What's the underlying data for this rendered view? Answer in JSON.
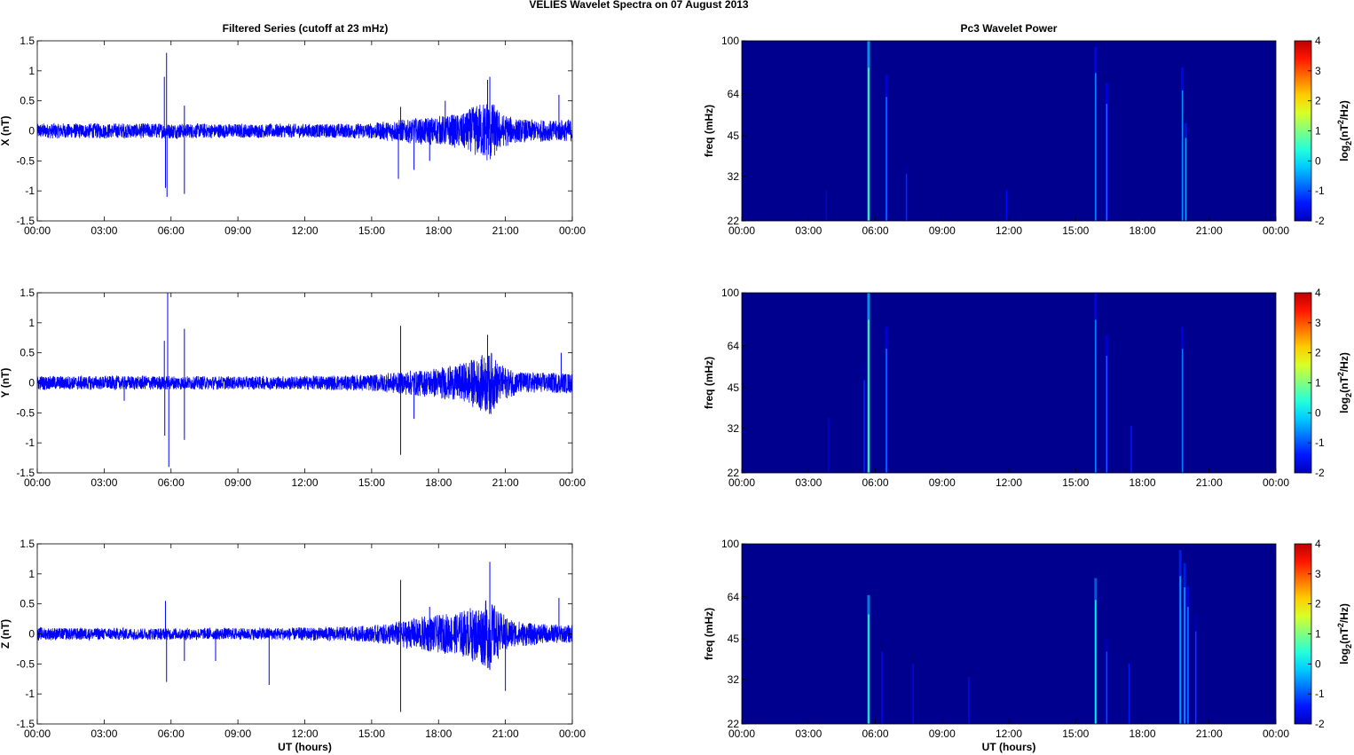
{
  "figure": {
    "title": "VELIES Wavelet Spectra on 07 August    2013",
    "left_column_title": "Filtered Series (cutoff at 23 mHz)",
    "right_column_title": "Pc3 Wavelet Power",
    "series_color": "#0000FF",
    "spectrogram_background": "#00008F",
    "colormap": "jet"
  },
  "chart_data": [
    {
      "type": "line",
      "panel": "X",
      "title": "Filtered Series (cutoff at 23 mHz)",
      "xlabel": "",
      "ylabel": "X (nT)",
      "xlim": [
        "00:00",
        "24:00"
      ],
      "ylim": [
        -1.5,
        1.5
      ],
      "x_ticks": [
        "00:00",
        "03:00",
        "06:00",
        "09:00",
        "12:00",
        "15:00",
        "18:00",
        "21:00",
        "00:00"
      ],
      "y_ticks": [
        "1.5",
        "1",
        "0.5",
        "0",
        "-0.5",
        "-1",
        "-1.5"
      ],
      "series": [
        {
          "baseline_envelope": [
            [
              0,
              0.13
            ],
            [
              5,
              0.13
            ],
            [
              6,
              0.13
            ],
            [
              9,
              0.12
            ],
            [
              12,
              0.12
            ],
            [
              15,
              0.13
            ],
            [
              16,
              0.18
            ],
            [
              17,
              0.22
            ],
            [
              18,
              0.25
            ],
            [
              19,
              0.3
            ],
            [
              19.8,
              0.45
            ],
            [
              20.3,
              0.55
            ],
            [
              20.8,
              0.3
            ],
            [
              21.5,
              0.2
            ],
            [
              23,
              0.18
            ],
            [
              24,
              0.2
            ]
          ],
          "spikes": [
            [
              5.7,
              0.9
            ],
            [
              5.75,
              -0.95
            ],
            [
              5.8,
              1.3
            ],
            [
              5.82,
              -1.1
            ],
            [
              6.6,
              -1.05
            ],
            [
              6.6,
              0.42
            ],
            [
              16.2,
              -0.8
            ],
            [
              16.3,
              0.4
            ],
            [
              16.9,
              -0.65
            ],
            [
              17.6,
              -0.5
            ],
            [
              18.3,
              0.5
            ],
            [
              20.2,
              0.85
            ],
            [
              20.3,
              0.9
            ],
            [
              23.4,
              0.6
            ]
          ]
        }
      ]
    },
    {
      "type": "heatmap",
      "panel": "X",
      "title": "Pc3 Wavelet Power",
      "xlabel": "",
      "ylabel": "freq (mHz)",
      "colorbar_label": "log2(nT^2/Hz)",
      "x_ticks": [
        "00:00",
        "03:00",
        "06:00",
        "09:00",
        "12:00",
        "15:00",
        "18:00",
        "21:00",
        "00:00"
      ],
      "y_ticks": [
        "100",
        "64",
        "45",
        "32",
        "22"
      ],
      "colorbar_ticks": [
        "4",
        "3",
        "2",
        "1",
        "0",
        "-1",
        "-2"
      ],
      "crange": [
        -2,
        4
      ],
      "bursts": [
        [
          5.7,
          100,
          0.8
        ],
        [
          6.5,
          75,
          -0.5
        ],
        [
          7.4,
          35,
          -1.0
        ],
        [
          3.8,
          30,
          -1.4
        ],
        [
          11.9,
          30,
          -1.2
        ],
        [
          15.9,
          95,
          -0.4
        ],
        [
          16.4,
          70,
          -0.5
        ],
        [
          19.8,
          80,
          -0.4
        ],
        [
          19.95,
          50,
          -0.3
        ]
      ]
    },
    {
      "type": "line",
      "panel": "Y",
      "title": "",
      "xlabel": "",
      "ylabel": "Y (nT)",
      "xlim": [
        "00:00",
        "24:00"
      ],
      "ylim": [
        -1.5,
        1.5
      ],
      "x_ticks": [
        "00:00",
        "03:00",
        "06:00",
        "09:00",
        "12:00",
        "15:00",
        "18:00",
        "21:00",
        "00:00"
      ],
      "y_ticks": [
        "1.5",
        "1",
        "0.5",
        "0",
        "-0.5",
        "-1",
        "-1.5"
      ],
      "series": [
        {
          "baseline_envelope": [
            [
              0,
              0.12
            ],
            [
              5,
              0.12
            ],
            [
              9,
              0.11
            ],
            [
              12,
              0.12
            ],
            [
              15,
              0.14
            ],
            [
              16,
              0.18
            ],
            [
              17,
              0.22
            ],
            [
              18,
              0.26
            ],
            [
              19,
              0.32
            ],
            [
              19.8,
              0.45
            ],
            [
              20.3,
              0.55
            ],
            [
              20.8,
              0.3
            ],
            [
              21.5,
              0.2
            ],
            [
              23,
              0.17
            ],
            [
              24,
              0.18
            ]
          ],
          "spikes": [
            [
              5.7,
              0.7
            ],
            [
              5.72,
              -0.88
            ],
            [
              5.85,
              1.5
            ],
            [
              5.9,
              -1.4
            ],
            [
              6.6,
              0.9
            ],
            [
              6.6,
              -0.95
            ],
            [
              16.3,
              0.95
            ],
            [
              16.3,
              -1.2
            ],
            [
              16.9,
              -0.6
            ],
            [
              20.2,
              0.8
            ],
            [
              20.3,
              -0.5
            ],
            [
              23.5,
              0.5
            ],
            [
              3.9,
              -0.3
            ]
          ]
        }
      ]
    },
    {
      "type": "heatmap",
      "panel": "Y",
      "title": "",
      "xlabel": "",
      "ylabel": "freq (mHz)",
      "colorbar_label": "log2(nT^2/Hz)",
      "x_ticks": [
        "00:00",
        "03:00",
        "06:00",
        "09:00",
        "12:00",
        "15:00",
        "18:00",
        "21:00",
        "00:00"
      ],
      "y_ticks": [
        "100",
        "64",
        "45",
        "32",
        "22"
      ],
      "colorbar_ticks": [
        "4",
        "3",
        "2",
        "1",
        "0",
        "-1",
        "-2"
      ],
      "crange": [
        -2,
        4
      ],
      "bursts": [
        [
          5.7,
          100,
          0.8
        ],
        [
          6.5,
          75,
          -0.5
        ],
        [
          3.9,
          38,
          -1.3
        ],
        [
          15.9,
          100,
          -0.4
        ],
        [
          16.4,
          70,
          -0.6
        ],
        [
          17.5,
          35,
          -1.1
        ],
        [
          19.8,
          75,
          -0.5
        ],
        [
          5.5,
          55,
          -1.0
        ]
      ]
    },
    {
      "type": "line",
      "panel": "Z",
      "title": "",
      "xlabel": "UT (hours)",
      "ylabel": "Z (nT)",
      "xlim": [
        "00:00",
        "24:00"
      ],
      "ylim": [
        -1.5,
        1.5
      ],
      "x_ticks": [
        "00:00",
        "03:00",
        "06:00",
        "09:00",
        "12:00",
        "15:00",
        "18:00",
        "21:00",
        "00:00"
      ],
      "y_ticks": [
        "1.5",
        "1",
        "0.5",
        "0",
        "-0.5",
        "-1",
        "-1.5"
      ],
      "series": [
        {
          "baseline_envelope": [
            [
              0,
              0.11
            ],
            [
              5,
              0.1
            ],
            [
              9,
              0.1
            ],
            [
              12,
              0.11
            ],
            [
              15,
              0.14
            ],
            [
              16,
              0.2
            ],
            [
              17,
              0.28
            ],
            [
              18,
              0.32
            ],
            [
              19,
              0.38
            ],
            [
              19.8,
              0.5
            ],
            [
              20.3,
              0.6
            ],
            [
              20.8,
              0.35
            ],
            [
              21.5,
              0.22
            ],
            [
              23,
              0.16
            ],
            [
              24,
              0.15
            ]
          ],
          "spikes": [
            [
              5.75,
              0.55
            ],
            [
              5.8,
              -0.8
            ],
            [
              6.6,
              -0.45
            ],
            [
              10.4,
              -0.85
            ],
            [
              16.3,
              0.9
            ],
            [
              16.3,
              -1.3
            ],
            [
              17.6,
              0.45
            ],
            [
              20.3,
              1.2
            ],
            [
              20.3,
              -0.6
            ],
            [
              21.0,
              -0.95
            ],
            [
              23.4,
              0.6
            ],
            [
              8.0,
              -0.45
            ]
          ]
        }
      ]
    },
    {
      "type": "heatmap",
      "panel": "Z",
      "title": "",
      "xlabel": "UT (hours)",
      "ylabel": "freq (mHz)",
      "colorbar_label": "log2(nT^2/Hz)",
      "x_ticks": [
        "00:00",
        "03:00",
        "06:00",
        "09:00",
        "12:00",
        "15:00",
        "18:00",
        "21:00",
        "00:00"
      ],
      "y_ticks": [
        "100",
        "64",
        "45",
        "32",
        "22"
      ],
      "colorbar_ticks": [
        "4",
        "3",
        "2",
        "1",
        "0",
        "-1",
        "-2"
      ],
      "crange": [
        -2,
        4
      ],
      "bursts": [
        [
          5.7,
          65,
          0.6
        ],
        [
          6.3,
          45,
          -1.2
        ],
        [
          7.7,
          40,
          -1.2
        ],
        [
          10.2,
          35,
          -1.2
        ],
        [
          15.9,
          75,
          0.3
        ],
        [
          16.4,
          45,
          -0.8
        ],
        [
          17.4,
          40,
          -1.1
        ],
        [
          19.7,
          95,
          -0.2
        ],
        [
          19.9,
          85,
          -0.2
        ],
        [
          20.05,
          70,
          -0.4
        ],
        [
          20.4,
          55,
          -0.9
        ]
      ]
    }
  ]
}
